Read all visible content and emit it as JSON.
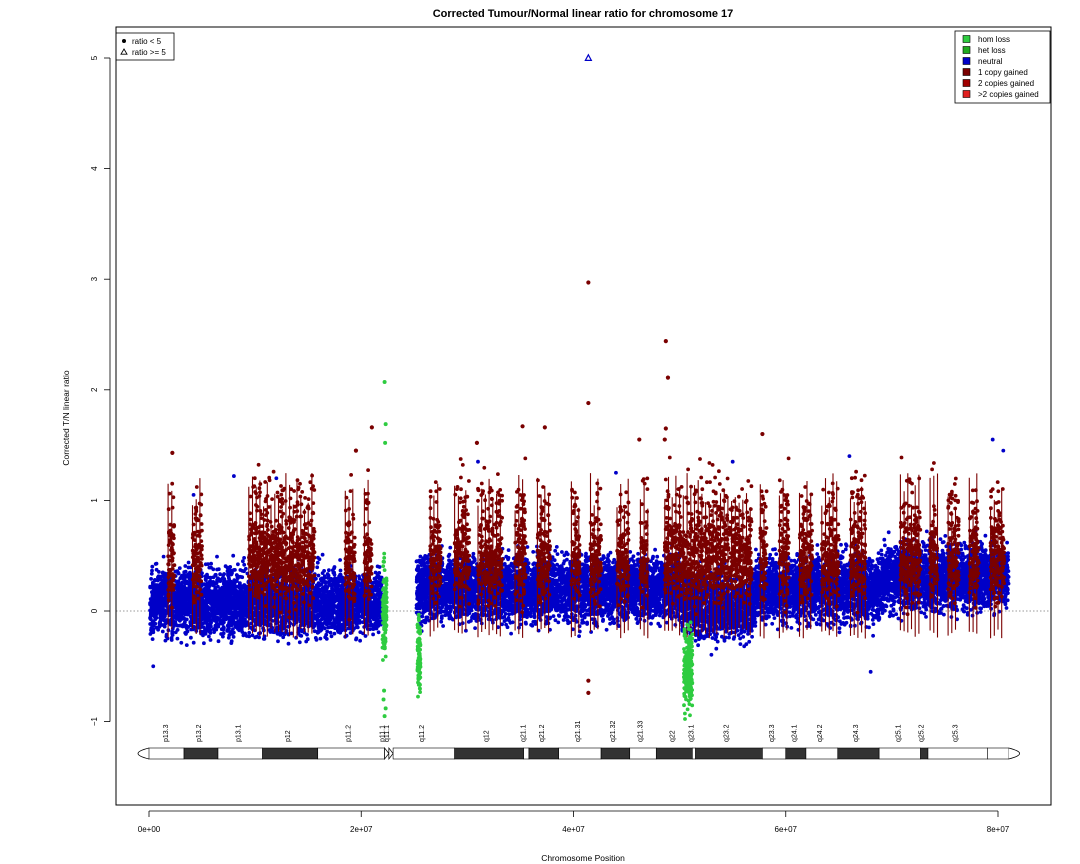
{
  "chart_data": {
    "type": "scatter",
    "title": "Corrected Tumour/Normal linear ratio for chromosome  17",
    "xlabel": "Chromosome Position",
    "ylabel": "Corrected T/N linear ratio",
    "xlim": [
      0,
      81000000
    ],
    "ylim": [
      -1.75,
      5.3
    ],
    "x_ticks": [
      0,
      20000000,
      40000000,
      60000000,
      80000000
    ],
    "x_tick_labels": [
      "0e+00",
      "2e+07",
      "4e+07",
      "6e+07",
      "8e+07"
    ],
    "y_ticks": [
      -1,
      0,
      1,
      2,
      3,
      4,
      5
    ],
    "y_tick_labels": [
      "−1",
      "0",
      "1",
      "2",
      "3",
      "4",
      "5"
    ],
    "reference_line": 0,
    "grid": false,
    "shape_legend": {
      "position": "top-left",
      "entries": [
        {
          "label": "ratio < 5",
          "shape": "filled-circle"
        },
        {
          "label": "ratio >= 5",
          "shape": "open-triangle"
        }
      ]
    },
    "legend": {
      "position": "top-right",
      "entries": [
        {
          "label": "hom loss",
          "color": "#2ecc40"
        },
        {
          "label": "het loss",
          "color": "#1faa1f"
        },
        {
          "label": "neutral",
          "color": "#0000c8"
        },
        {
          "label": "1 copy gained",
          "color": "#7a0000"
        },
        {
          "label": "2 copies gained",
          "color": "#a00000"
        },
        {
          "label": ">2 copies gained",
          "color": "#e02020"
        }
      ]
    },
    "series": [
      {
        "name": "neutral",
        "color": "#0000c8",
        "ranges": [
          [
            0.1,
            22.0,
            0.08
          ],
          [
            25.2,
            50.2,
            0.2
          ],
          [
            50.2,
            57.0,
            0.05
          ],
          [
            57.0,
            69.0,
            0.2
          ],
          [
            69.0,
            81.0,
            0.3
          ]
        ],
        "points": [
          {
            "x": 4.2,
            "y": 1.05
          },
          {
            "x": 12.0,
            "y": 1.2
          },
          {
            "x": 31.0,
            "y": 1.35
          },
          {
            "x": 44.0,
            "y": 1.25
          },
          {
            "x": 55.0,
            "y": 1.35
          },
          {
            "x": 66.0,
            "y": 1.4
          },
          {
            "x": 79.5,
            "y": 1.55
          },
          {
            "x": 80.5,
            "y": 1.45
          },
          {
            "x": 0.4,
            "y": -0.5
          },
          {
            "x": 50.5,
            "y": -0.6
          },
          {
            "x": 68.0,
            "y": -0.55
          },
          {
            "x": 8.0,
            "y": 1.22
          }
        ]
      },
      {
        "name": "1 copy gained",
        "color": "#7a0000",
        "segments": [
          1.8,
          2.4,
          4.1,
          5.0,
          9.4,
          15.6,
          18.5,
          19.4,
          20.3,
          21.0,
          26.5,
          27.5,
          28.8,
          30.2,
          31.0,
          33.3,
          34.5,
          35.5,
          36.6,
          37.8,
          39.8,
          40.6,
          41.6,
          42.6,
          44.1,
          45.2,
          46.3,
          47.0,
          48.6,
          56.8,
          57.6,
          58.2,
          59.4,
          60.3,
          61.3,
          62.5,
          63.4,
          65.0,
          66.1,
          67.5,
          70.8,
          72.7,
          73.6,
          74.3,
          75.3,
          76.3,
          77.3,
          78.2,
          79.3,
          80.6
        ],
        "points": [
          {
            "x": 41.4,
            "y": 2.97
          },
          {
            "x": 41.4,
            "y": 1.88
          },
          {
            "x": 48.7,
            "y": 2.44
          },
          {
            "x": 48.9,
            "y": 2.11
          },
          {
            "x": 48.7,
            "y": 1.65
          },
          {
            "x": 48.6,
            "y": 1.55
          },
          {
            "x": 35.2,
            "y": 1.67
          },
          {
            "x": 37.3,
            "y": 1.66
          },
          {
            "x": 21.0,
            "y": 1.66
          },
          {
            "x": 19.5,
            "y": 1.45
          },
          {
            "x": 30.9,
            "y": 1.52
          },
          {
            "x": 57.8,
            "y": 1.6
          },
          {
            "x": 41.4,
            "y": -0.63
          },
          {
            "x": 41.4,
            "y": -0.74
          },
          {
            "x": 2.2,
            "y": 1.43
          },
          {
            "x": 46.2,
            "y": 1.55
          }
        ]
      },
      {
        "name": "hom loss",
        "color": "#2ecc40",
        "ranges": [
          [
            22.0,
            22.4,
            0.0
          ],
          [
            25.3,
            25.6,
            -0.4
          ],
          [
            50.4,
            51.2,
            -0.5
          ]
        ],
        "points": [
          {
            "x": 22.2,
            "y": 2.07
          },
          {
            "x": 22.3,
            "y": 1.69
          },
          {
            "x": 22.25,
            "y": 1.52
          },
          {
            "x": 22.2,
            "y": -0.95
          },
          {
            "x": 22.3,
            "y": -0.88
          },
          {
            "x": 22.1,
            "y": -0.8
          },
          {
            "x": 22.15,
            "y": -0.72
          },
          {
            "x": 50.9,
            "y": -0.65
          }
        ]
      }
    ],
    "outliers": [
      {
        "x": 41.4,
        "y": 5.0,
        "shape": "open-triangle",
        "color": "#0000c8"
      }
    ],
    "ideogram": {
      "bands": [
        {
          "name": "p13.3",
          "start": 0.0,
          "end": 3.3,
          "stain": "white",
          "label_x": 1.8
        },
        {
          "name": "p13.2",
          "start": 3.3,
          "end": 6.5,
          "stain": "dark",
          "label_x": 4.9
        },
        {
          "name": "p13.1",
          "start": 6.5,
          "end": 10.7,
          "stain": "white",
          "label_x": 8.6
        },
        {
          "name": "p12",
          "start": 10.7,
          "end": 15.9,
          "stain": "dark",
          "label_x": 13.3
        },
        {
          "name": "p11.2",
          "start": 15.9,
          "end": 22.2,
          "stain": "white",
          "label_x": 19.0
        },
        {
          "name": "p11.1",
          "start": 22.2,
          "end": 22.6,
          "stain": "centromere",
          "label_x": 22.2
        },
        {
          "name": "q11.1",
          "start": 22.6,
          "end": 23.0,
          "stain": "centromere",
          "label_x": 22.6
        },
        {
          "name": "q11.2",
          "start": 23.0,
          "end": 28.8,
          "stain": "white",
          "label_x": 25.9
        },
        {
          "name": "q12",
          "start": 28.8,
          "end": 35.3,
          "stain": "dark",
          "label_x": 32.0
        },
        {
          "name": "q21.1",
          "start": 35.3,
          "end": 35.8,
          "stain": "white",
          "label_x": 35.5
        },
        {
          "name": "q21.2",
          "start": 35.8,
          "end": 38.6,
          "stain": "dark",
          "label_x": 37.2
        },
        {
          "name": "q21.31",
          "start": 38.6,
          "end": 42.6,
          "stain": "white",
          "label_x": 40.6
        },
        {
          "name": "q21.32",
          "start": 42.6,
          "end": 45.3,
          "stain": "dark",
          "label_x": 43.9
        },
        {
          "name": "q21.33",
          "start": 45.3,
          "end": 47.8,
          "stain": "white",
          "label_x": 46.5
        },
        {
          "name": "q22",
          "start": 47.8,
          "end": 51.2,
          "stain": "dark",
          "label_x": 49.5
        },
        {
          "name": "q23.1",
          "start": 51.2,
          "end": 51.5,
          "stain": "white",
          "label_x": 51.3
        },
        {
          "name": "q23.2",
          "start": 51.5,
          "end": 57.8,
          "stain": "dark",
          "label_x": 54.6
        },
        {
          "name": "q23.3",
          "start": 57.8,
          "end": 60.0,
          "stain": "white",
          "label_x": 58.9
        },
        {
          "name": "q24.1",
          "start": 60.0,
          "end": 61.9,
          "stain": "dark",
          "label_x": 61.0
        },
        {
          "name": "q24.2",
          "start": 61.9,
          "end": 64.9,
          "stain": "white",
          "label_x": 63.4
        },
        {
          "name": "q24.3",
          "start": 64.9,
          "end": 68.8,
          "stain": "dark",
          "label_x": 66.8
        },
        {
          "name": "q25.1",
          "start": 68.8,
          "end": 72.7,
          "stain": "white",
          "label_x": 70.8
        },
        {
          "name": "q25.2",
          "start": 72.7,
          "end": 73.4,
          "stain": "dark",
          "label_x": 73.0
        },
        {
          "name": "q25.3",
          "start": 73.4,
          "end": 79.0,
          "stain": "white",
          "label_x": 76.2
        }
      ]
    }
  }
}
